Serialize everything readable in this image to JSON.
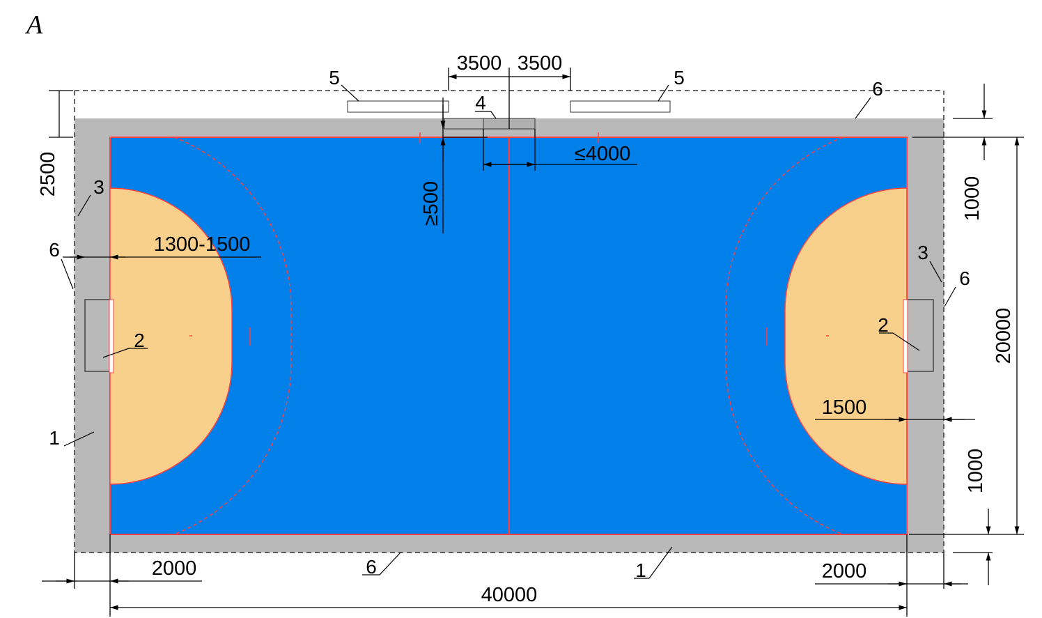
{
  "panel_label": "A",
  "dimensions": {
    "bench_left": "3500",
    "bench_right": "3500",
    "table_length": "≤4000",
    "table_distance": "≥500",
    "bench_zone": "2500",
    "goal_depth": "1300-1500",
    "top_margin": "1000",
    "court_width": "20000",
    "bottom_margin": "1000",
    "end_margin": "1500",
    "left_run": "2000",
    "right_run": "2000",
    "court_length": "40000"
  },
  "callouts": [
    "5",
    "5",
    "6",
    "4",
    "3",
    "6",
    "2",
    "1",
    "6",
    "1",
    "3",
    "6",
    "2"
  ]
}
